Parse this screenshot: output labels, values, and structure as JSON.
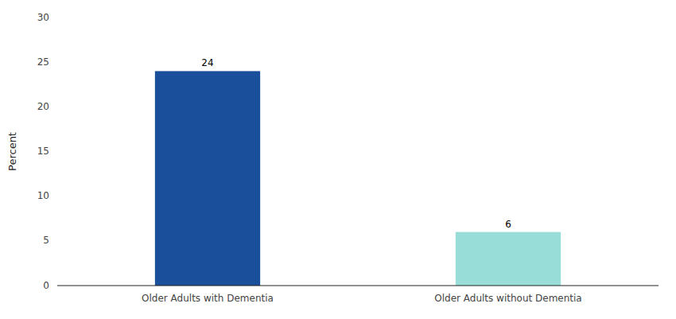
{
  "chart_data": {
    "type": "bar",
    "categories": [
      "Older Adults with Dementia",
      "Older Adults without Dementia"
    ],
    "values": [
      24,
      6
    ],
    "colors": [
      "#1a4f9c",
      "#99ddd8"
    ],
    "ylabel": "Percent",
    "ylim": [
      0,
      30
    ],
    "yticks": [
      0,
      5,
      10,
      15,
      20,
      25,
      30
    ],
    "grid": false,
    "data_labels": true
  }
}
